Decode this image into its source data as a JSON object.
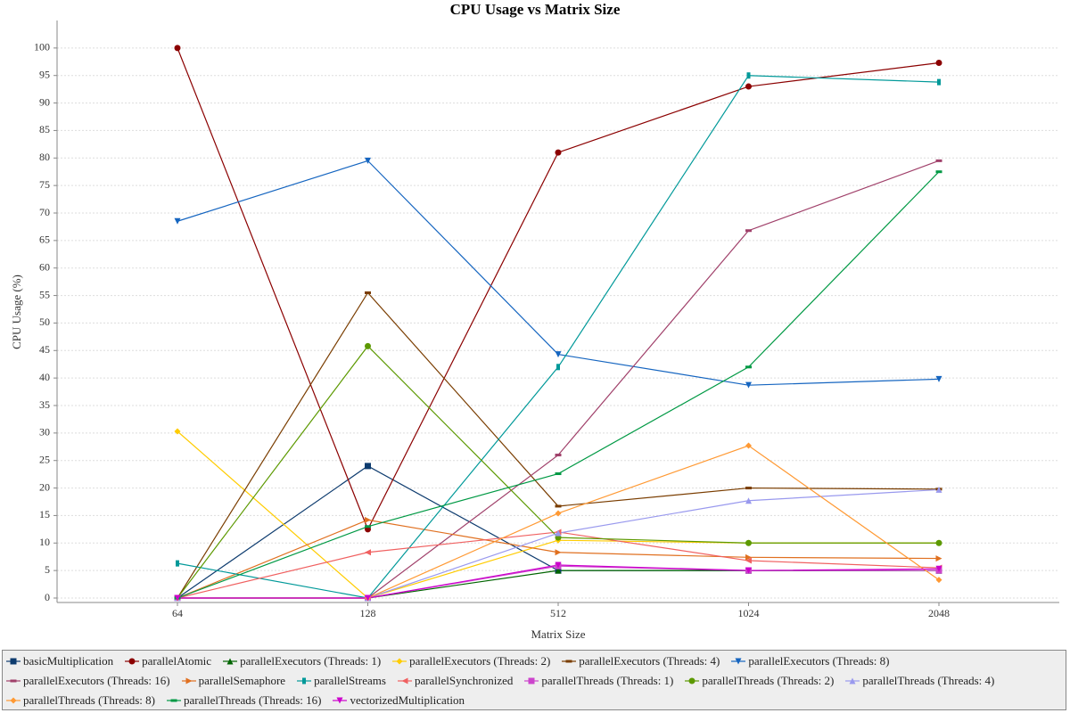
{
  "chart_data": {
    "type": "line",
    "title": "CPU Usage vs Matrix Size",
    "x_label": "Matrix Size",
    "y_label": "CPU Usage (%)",
    "categories": [
      "64",
      "128",
      "512",
      "1024",
      "2048"
    ],
    "ylim": [
      0,
      105
    ],
    "yticks": [
      0,
      5,
      10,
      15,
      20,
      25,
      30,
      35,
      40,
      45,
      50,
      55,
      60,
      65,
      70,
      75,
      80,
      85,
      90,
      95,
      100
    ],
    "grid": true,
    "series": [
      {
        "name": "basicMultiplication",
        "color": "#0d3b6e",
        "marker": "square",
        "values": [
          0,
          24,
          5,
          5,
          5
        ]
      },
      {
        "name": "parallelAtomic",
        "color": "#8b0000",
        "marker": "circle",
        "values": [
          100,
          12.5,
          81,
          93,
          97.3
        ]
      },
      {
        "name": "parallelExecutors (Threads: 1)",
        "color": "#006400",
        "marker": "up",
        "values": [
          0,
          0,
          5,
          5,
          5
        ]
      },
      {
        "name": "parallelExecutors (Threads: 2)",
        "color": "#ffcc00",
        "marker": "diamond",
        "values": [
          30.3,
          0,
          10.5,
          10,
          10
        ]
      },
      {
        "name": "parallelExecutors (Threads: 4)",
        "color": "#7a3d00",
        "marker": "hrect",
        "values": [
          0,
          55.5,
          16.7,
          20,
          19.8
        ]
      },
      {
        "name": "parallelExecutors (Threads: 8)",
        "color": "#1565c0",
        "marker": "down",
        "values": [
          68.5,
          79.5,
          44.3,
          38.7,
          39.8
        ]
      },
      {
        "name": "parallelExecutors (Threads: 16)",
        "color": "#a0406a",
        "marker": "hrect",
        "values": [
          0,
          0,
          26,
          66.8,
          79.5
        ]
      },
      {
        "name": "parallelSemaphore",
        "color": "#e07020",
        "marker": "right",
        "values": [
          0,
          14.2,
          8.3,
          7.4,
          7.2
        ]
      },
      {
        "name": "parallelStreams",
        "color": "#009999",
        "marker": "vrect",
        "values": [
          6.3,
          0,
          42,
          95,
          93.8
        ]
      },
      {
        "name": "parallelSynchronized",
        "color": "#f06060",
        "marker": "left",
        "values": [
          0,
          8.3,
          12,
          6.8,
          5.5
        ]
      },
      {
        "name": "parallelThreads (Threads: 1)",
        "color": "#cc44cc",
        "marker": "square",
        "values": [
          0,
          0,
          5.8,
          5,
          5
        ]
      },
      {
        "name": "parallelThreads (Threads: 2)",
        "color": "#5c9900",
        "marker": "circle",
        "values": [
          0,
          45.8,
          11,
          10,
          10
        ]
      },
      {
        "name": "parallelThreads (Threads: 4)",
        "color": "#9999ee",
        "marker": "up",
        "values": [
          0,
          0,
          11.8,
          17.7,
          19.7
        ]
      },
      {
        "name": "parallelThreads (Threads: 8)",
        "color": "#ff9933",
        "marker": "diamond",
        "values": [
          0,
          0,
          15.4,
          27.7,
          3.3
        ]
      },
      {
        "name": "parallelThreads (Threads: 16)",
        "color": "#009944",
        "marker": "hrect",
        "values": [
          0,
          13,
          22.6,
          42,
          77.5
        ]
      },
      {
        "name": "vectorizedMultiplication",
        "color": "#cc00cc",
        "marker": "down",
        "values": [
          0,
          0,
          6,
          5,
          5.3
        ]
      }
    ]
  }
}
